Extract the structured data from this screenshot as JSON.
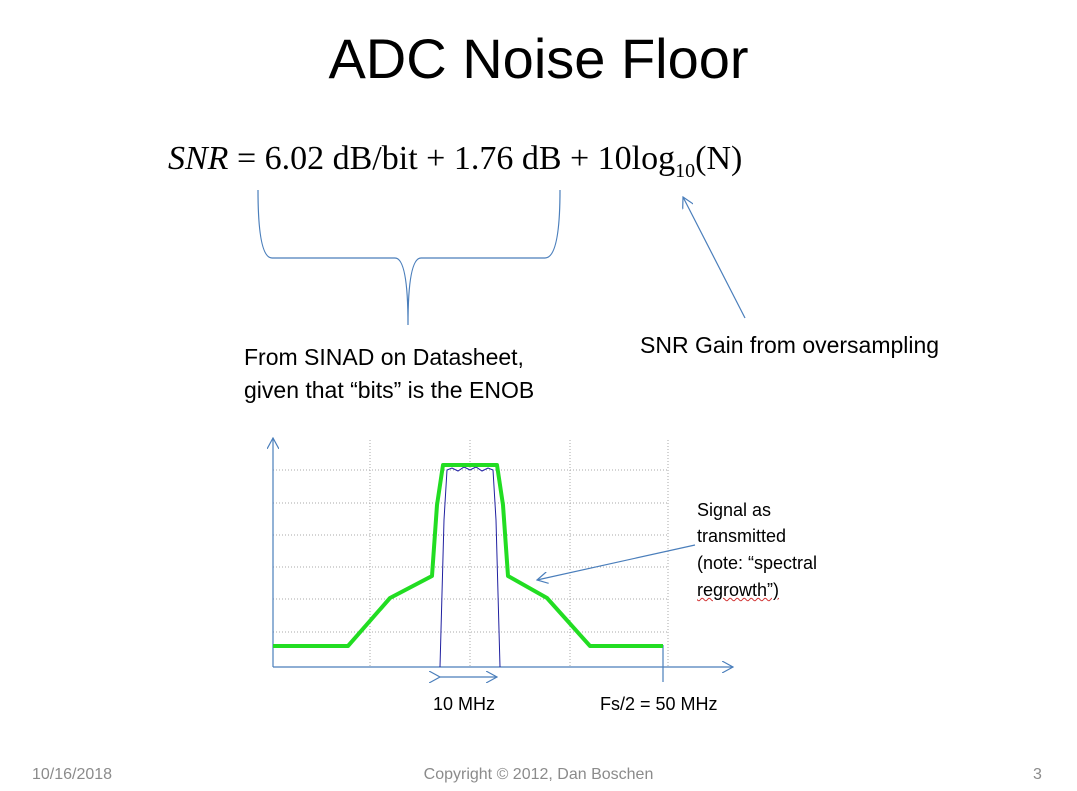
{
  "slide": {
    "title": "ADC Noise Floor",
    "formula": {
      "lhs": "SNR",
      "rhs": "= 6.02 dB/bit + 1.76 dB + 10log",
      "subscript": "10",
      "arg": "(N)"
    },
    "brace_label": [
      "From SINAD on Datasheet,",
      "given that “bits” is the ENOB"
    ],
    "gain_label": "SNR Gain from oversampling",
    "figure": {
      "annotation": [
        "Signal as",
        "transmitted",
        "(note: “spectral",
        "regrowth”)"
      ],
      "bandwidth_label": "10 MHz",
      "nyquist_label": "Fs/2 = 50 MHz"
    },
    "footer": {
      "date": "10/16/2018",
      "copyright": "Copyright © 2012, Dan Boschen",
      "page": "3"
    }
  }
}
